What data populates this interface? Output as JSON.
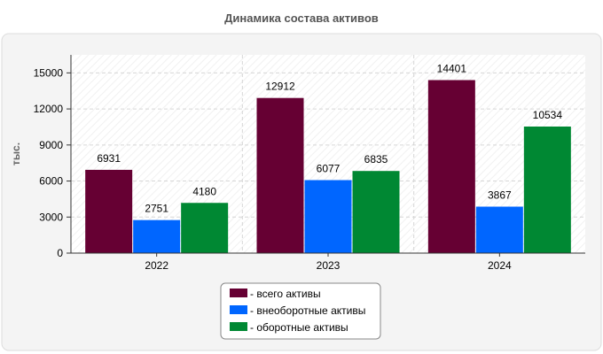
{
  "chart_data": {
    "type": "bar",
    "title": "Динамика состава активов",
    "ylabel": "тыс.",
    "xlabel": "",
    "categories": [
      "2022",
      "2023",
      "2024"
    ],
    "ylim": [
      0,
      16500
    ],
    "yticks": [
      0,
      3000,
      6000,
      9000,
      12000,
      15000
    ],
    "grid": true,
    "legend_position": "bottom-center",
    "series": [
      {
        "name": "всего активы",
        "legend_label": "- всего активы",
        "color": "#660033",
        "values": [
          6931,
          12912,
          14401
        ]
      },
      {
        "name": "внеоборотные активы",
        "legend_label": "- внеоборотные активы",
        "color": "#0066ff",
        "values": [
          2751,
          6077,
          3867
        ]
      },
      {
        "name": "оборотные активы",
        "legend_label": "- оборотные активы",
        "color": "#008833",
        "values": [
          4180,
          6835,
          10534
        ]
      }
    ]
  }
}
